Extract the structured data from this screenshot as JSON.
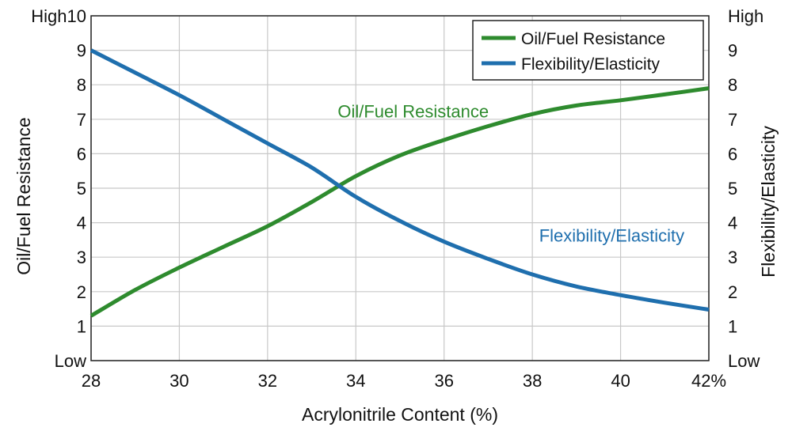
{
  "chart_data": {
    "type": "line",
    "xlabel": "Acrylonitrile Content (%)",
    "ylabel_left": "Oil/Fuel Resistance",
    "ylabel_right": "Flexibility/Elasticity",
    "xlim": [
      28,
      42
    ],
    "ylim": [
      0,
      10
    ],
    "x_ticks": [
      28,
      30,
      32,
      34,
      36,
      38,
      40,
      42
    ],
    "x_tick_labels": [
      "28",
      "30",
      "32",
      "34",
      "36",
      "38",
      "40",
      "42%"
    ],
    "y_tick_labels_left": [
      "Low",
      "1",
      "2",
      "3",
      "4",
      "5",
      "6",
      "7",
      "8",
      "9",
      "High10"
    ],
    "y_tick_labels_right": [
      "Low",
      "1",
      "2",
      "3",
      "4",
      "5",
      "6",
      "7",
      "8",
      "9",
      "High"
    ],
    "grid": true,
    "legend_position": "top-right",
    "series": [
      {
        "name": "Oil/Fuel Resistance",
        "color": "#2e8b2e",
        "x": [
          28,
          29,
          30,
          31,
          32,
          33,
          34,
          35,
          36,
          37,
          38,
          39,
          40,
          41,
          42
        ],
        "y": [
          1.3,
          2.05,
          2.7,
          3.3,
          3.9,
          4.6,
          5.35,
          5.95,
          6.4,
          6.8,
          7.15,
          7.4,
          7.55,
          7.72,
          7.9
        ]
      },
      {
        "name": "Flexibility/Elasticity",
        "color": "#1f6fae",
        "x": [
          28,
          29,
          30,
          31,
          32,
          33,
          34,
          35,
          36,
          37,
          38,
          39,
          40,
          41,
          42
        ],
        "y": [
          9.0,
          8.35,
          7.7,
          7.0,
          6.3,
          5.6,
          4.75,
          4.05,
          3.45,
          2.95,
          2.5,
          2.15,
          1.9,
          1.68,
          1.48
        ]
      }
    ],
    "annotations": [
      {
        "text": "Oil/Fuel Resistance",
        "x": 35.3,
        "y": 7.05,
        "series": 0
      },
      {
        "text": "Flexibility/Elasticity",
        "x": 39.8,
        "y": 3.45,
        "series": 1
      }
    ]
  }
}
